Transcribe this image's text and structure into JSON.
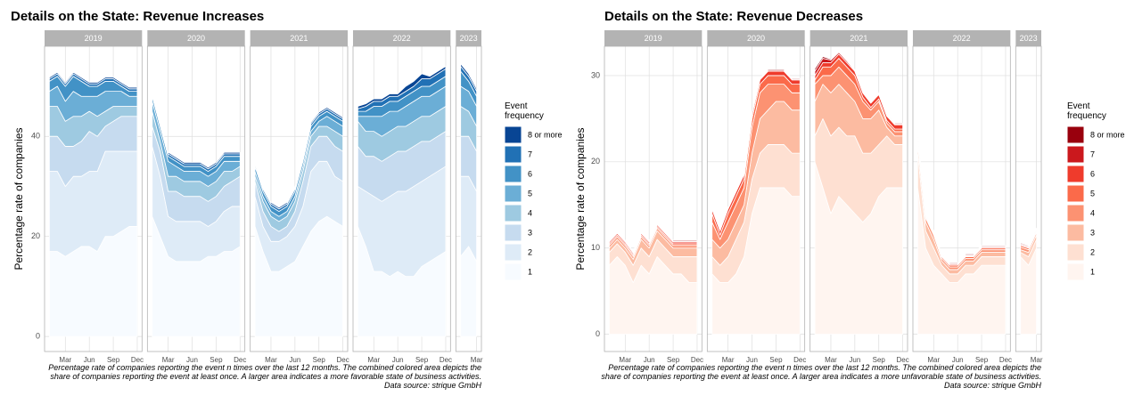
{
  "chart_data": [
    {
      "type": "area",
      "stacked": true,
      "grid": true,
      "title": "Details on the State: Revenue Increases",
      "y_label": "Percentage rate of companies",
      "legend_title": "Event frequency",
      "caption": "Percentage rate of companies reporting the event n times over the last 12 months. The combined colored area depicts the share of companies reporting the event at least once. A larger area indicates a more favorable state of business activities. Data source: strique GmbH",
      "ylim": [
        -3,
        58
      ],
      "yticks": [
        0,
        20,
        40
      ],
      "facets": [
        {
          "label": "2019",
          "categories": [
            null,
            null,
            "Mar",
            null,
            null,
            "Jun",
            null,
            null,
            "Sep",
            null,
            null,
            "Dec"
          ]
        },
        {
          "label": "2020",
          "categories": [
            null,
            null,
            "Mar",
            null,
            null,
            "Jun",
            null,
            null,
            "Sep",
            null,
            null,
            "Dec"
          ]
        },
        {
          "label": "2021",
          "categories": [
            null,
            null,
            "Mar",
            null,
            null,
            "Jun",
            null,
            null,
            "Sep",
            null,
            null,
            "Dec"
          ]
        },
        {
          "label": "2022",
          "categories": [
            null,
            null,
            "Mar",
            null,
            null,
            "Jun",
            null,
            null,
            "Sep",
            null,
            null,
            "Dec"
          ]
        },
        {
          "label": "2023",
          "categories": [
            null,
            null,
            "Mar"
          ]
        }
      ],
      "series": [
        {
          "name": "1",
          "color": "#f7fbff",
          "values": [
            17,
            17,
            16,
            17,
            18,
            18,
            17,
            20,
            20,
            21,
            22,
            22,
            24,
            20,
            16,
            15,
            15,
            15,
            15,
            16,
            16,
            17,
            17,
            18,
            22,
            17,
            13,
            13,
            14,
            15,
            18,
            21,
            23,
            24,
            23,
            22,
            22,
            18,
            13,
            13,
            12,
            13,
            12,
            12,
            14,
            15,
            16,
            17,
            16,
            18,
            15
          ]
        },
        {
          "name": "2",
          "color": "#deebf7",
          "values": [
            16,
            16,
            14,
            15,
            14,
            15,
            16,
            17,
            17,
            16,
            15,
            15,
            14,
            12,
            8,
            8,
            8,
            8,
            8,
            6,
            7,
            8,
            9,
            8,
            6,
            5,
            6,
            6,
            6,
            7,
            8,
            12,
            12,
            11,
            9,
            9,
            8,
            11,
            15,
            14,
            16,
            16,
            17,
            18,
            17,
            17,
            17,
            17,
            16,
            14,
            14
          ]
        },
        {
          "name": "3",
          "color": "#c6dbef",
          "values": [
            7,
            7,
            8,
            6,
            7,
            8,
            7,
            5,
            6,
            7,
            7,
            7,
            4,
            5,
            5,
            6,
            5,
            5,
            5,
            5,
            5,
            5,
            5,
            6,
            3,
            3,
            3,
            2,
            2,
            3,
            5,
            5,
            5,
            5,
            6,
            6,
            8,
            7,
            8,
            8,
            8,
            8,
            8,
            8,
            8,
            7,
            7,
            7,
            8,
            8,
            8
          ]
        },
        {
          "name": "4",
          "color": "#9ecae1",
          "values": [
            6,
            6,
            5,
            6,
            5,
            4,
            4,
            3,
            3,
            2,
            2,
            2,
            3,
            2,
            3,
            3,
            3,
            3,
            3,
            3,
            3,
            3,
            2,
            2,
            1,
            2,
            2,
            2,
            2,
            2,
            2,
            2,
            2,
            2,
            3,
            3,
            5,
            5,
            5,
            5,
            5,
            5,
            5,
            5,
            5,
            5,
            5,
            5,
            6,
            5,
            5
          ]
        },
        {
          "name": "5",
          "color": "#6baed6",
          "values": [
            3,
            4,
            4,
            5,
            4,
            3,
            4,
            4,
            3,
            3,
            2,
            2,
            2,
            2,
            3,
            2,
            2,
            2,
            2,
            2,
            2,
            2,
            2,
            1,
            1,
            1,
            1,
            1,
            1,
            1,
            1,
            1,
            1,
            2,
            2,
            2,
            1,
            3,
            3,
            4,
            4,
            3,
            4,
            4,
            4,
            4,
            4,
            4,
            4,
            4,
            4
          ]
        },
        {
          "name": "6",
          "color": "#4292c6",
          "values": [
            2,
            2,
            3,
            3,
            3,
            2,
            2,
            2,
            2,
            1,
            1,
            1,
            1,
            1,
            1,
            1,
            1,
            1,
            1,
            1,
            1,
            1,
            1,
            1,
            1,
            1,
            1,
            1,
            1,
            1,
            1,
            1,
            1,
            1,
            1,
            1,
            1,
            1,
            2,
            2,
            2,
            2,
            2,
            2,
            2,
            2,
            2,
            2,
            3,
            2,
            2
          ]
        },
        {
          "name": "7",
          "color": "#2171b5",
          "values": [
            0.5,
            0.5,
            0.5,
            0.5,
            0.5,
            0.5,
            0.5,
            0.5,
            0.5,
            0.5,
            0.5,
            0.5,
            0.5,
            0.5,
            0.5,
            0.5,
            0.5,
            0.5,
            0.5,
            0.5,
            0.5,
            0.5,
            0.5,
            0.5,
            0.5,
            0.5,
            0.5,
            0.5,
            0.5,
            0.5,
            0.5,
            0.5,
            0.5,
            0.5,
            0.5,
            0.5,
            0.5,
            1,
            1,
            1,
            1,
            1,
            1,
            1,
            1.5,
            1.5,
            1.5,
            1.5,
            1,
            1,
            1
          ]
        },
        {
          "name": "8 or more",
          "color": "#084594",
          "values": [
            0.3,
            0.3,
            0.3,
            0.3,
            0.3,
            0.3,
            0.3,
            0.3,
            0.3,
            0.3,
            0.3,
            0.3,
            0.3,
            0.3,
            0.3,
            0.3,
            0.3,
            0.3,
            0.3,
            0.3,
            0.3,
            0.3,
            0.3,
            0.3,
            0.3,
            0.3,
            0.3,
            0.3,
            0.3,
            0.3,
            0.3,
            0.3,
            0.3,
            0.3,
            0.3,
            0.3,
            0.5,
            0.5,
            0.5,
            0.5,
            0.5,
            0.5,
            1,
            1,
            1,
            0.5,
            0.5,
            0.5,
            0.5,
            0.5,
            0.5
          ]
        }
      ]
    },
    {
      "type": "area",
      "stacked": true,
      "grid": true,
      "title": "Details on the State: Revenue Decreases",
      "y_label": "Percentage rate of companies",
      "legend_title": "Event frequency",
      "caption": "Percentage rate of companies reporting the event n times over the last 12 months. The combined colored area depicts the share of companies reporting the event at least once. A larger area indicates a more unfavorable state of business activities. Data source: strique GmbH",
      "ylim": [
        -2,
        33.4
      ],
      "yticks": [
        0,
        10,
        20,
        30
      ],
      "facets": [
        {
          "label": "2019",
          "categories": [
            null,
            null,
            "Mar",
            null,
            null,
            "Jun",
            null,
            null,
            "Sep",
            null,
            null,
            "Dec"
          ]
        },
        {
          "label": "2020",
          "categories": [
            null,
            null,
            "Mar",
            null,
            null,
            "Jun",
            null,
            null,
            "Sep",
            null,
            null,
            "Dec"
          ]
        },
        {
          "label": "2021",
          "categories": [
            null,
            null,
            "Mar",
            null,
            null,
            "Jun",
            null,
            null,
            "Sep",
            null,
            null,
            "Dec"
          ]
        },
        {
          "label": "2022",
          "categories": [
            null,
            null,
            "Mar",
            null,
            null,
            "Jun",
            null,
            null,
            "Sep",
            null,
            null,
            "Dec"
          ]
        },
        {
          "label": "2023",
          "categories": [
            null,
            null,
            "Mar"
          ]
        }
      ],
      "series": [
        {
          "name": "1",
          "color": "#fff5f0",
          "values": [
            8,
            9,
            8,
            6,
            8,
            7,
            9,
            8,
            7,
            7,
            6,
            6,
            7,
            6,
            6,
            7,
            9,
            14,
            17,
            17,
            17,
            17,
            16,
            16,
            20,
            17,
            14,
            16,
            15,
            14,
            13,
            14,
            16,
            17,
            17,
            17,
            17,
            10,
            8,
            7,
            6,
            6,
            7,
            7,
            8,
            8,
            8,
            8,
            9,
            8,
            10
          ]
        },
        {
          "name": "2",
          "color": "#fee0d2",
          "values": [
            1.5,
            1.5,
            1.5,
            2,
            2,
            2,
            2,
            2,
            2,
            2,
            3,
            3,
            2,
            2,
            3,
            4,
            4,
            4,
            4,
            5,
            5,
            5,
            5,
            5,
            3,
            8,
            9,
            8,
            8,
            9,
            8,
            7,
            6,
            6,
            5,
            5,
            4,
            2,
            2,
            1,
            1,
            1,
            1,
            1,
            1,
            1,
            1,
            1,
            0.5,
            1,
            1
          ]
        },
        {
          "name": "3",
          "color": "#fcbba1",
          "values": [
            0.5,
            0.5,
            0.5,
            0.7,
            1,
            1,
            1,
            1,
            1,
            1,
            1,
            1,
            2,
            2,
            2,
            2,
            2,
            3,
            4,
            4,
            5,
            5,
            5,
            5,
            4,
            4,
            5,
            5,
            5,
            4,
            4,
            4,
            4,
            1,
            1,
            1,
            1,
            1,
            1,
            0.5,
            0.5,
            0.5,
            0.5,
            0.5,
            0.5,
            0.5,
            0.5,
            0.5,
            0.3,
            0.5,
            0.5
          ]
        },
        {
          "name": "4",
          "color": "#fc9272",
          "values": [
            0.3,
            0.3,
            0.3,
            0.3,
            0.3,
            0.3,
            0.3,
            0.3,
            0.3,
            0.3,
            0.3,
            0.3,
            2,
            1,
            2,
            2,
            2,
            3,
            3,
            3,
            2,
            2,
            2,
            2,
            2,
            1,
            2,
            2,
            2,
            2,
            2,
            1,
            1,
            0.5,
            0.5,
            0.5,
            0.5,
            0.5,
            0.5,
            0.3,
            0.3,
            0.3,
            0.3,
            0.3,
            0.3,
            0.3,
            0.3,
            0.3,
            0.3,
            0.3,
            0.3
          ]
        },
        {
          "name": "5",
          "color": "#fb6a4a",
          "values": [
            0.2,
            0.2,
            0.2,
            0.2,
            0.2,
            0.2,
            0.2,
            0.2,
            0.2,
            0.2,
            0.2,
            0.2,
            1,
            0.5,
            1,
            1,
            1,
            1,
            1,
            1,
            1,
            1,
            1,
            1,
            0.5,
            1,
            1,
            1,
            1,
            1,
            0.5,
            0.3,
            0.3,
            0.3,
            0.3,
            0.3,
            0.2,
            0.2,
            0.2,
            0.2,
            0.2,
            0.2,
            0.2,
            0.2,
            0.2,
            0.2,
            0.2,
            0.2,
            0.2,
            0.2,
            0.2
          ]
        },
        {
          "name": "6",
          "color": "#ef3b2c",
          "values": [
            0.2,
            0.2,
            0.2,
            0.2,
            0.2,
            0.2,
            0.2,
            0.2,
            0.2,
            0.2,
            0.2,
            0.2,
            0.5,
            0.5,
            0.5,
            0.5,
            0.5,
            0.5,
            0.5,
            0.5,
            0.5,
            0.5,
            0.5,
            0.5,
            0.5,
            0.5,
            0.5,
            0.5,
            0.5,
            0.5,
            0.5,
            0.5,
            0.5,
            0.5,
            0.5,
            0.5,
            0.1,
            0.1,
            0.1,
            0.1,
            0.1,
            0.1,
            0.1,
            0.1,
            0.1,
            0.1,
            0.1,
            0.1,
            0.1,
            0.1,
            0.1
          ]
        },
        {
          "name": "7",
          "color": "#cb181d",
          "values": [
            0.1,
            0.1,
            0.1,
            0.1,
            0.1,
            0.1,
            0.1,
            0.1,
            0.1,
            0.1,
            0.1,
            0.1,
            0.1,
            0.1,
            0.1,
            0.1,
            0.1,
            0.1,
            0.1,
            0.1,
            0.1,
            0.1,
            0.1,
            0.1,
            0.5,
            0.5,
            0.3,
            0.2,
            0.2,
            0.1,
            0.1,
            0.1,
            0.1,
            0.1,
            0.1,
            0.1,
            0.1,
            0.1,
            0.1,
            0.1,
            0.1,
            0.1,
            0.1,
            0.1,
            0.1,
            0.1,
            0.1,
            0.1,
            0.1,
            0.1,
            0.1
          ]
        },
        {
          "name": "8 or more",
          "color": "#99000d",
          "values": [
            0.1,
            0.1,
            0.1,
            0.1,
            0.1,
            0.1,
            0.1,
            0.1,
            0.1,
            0.1,
            0.1,
            0.1,
            0.1,
            0.1,
            0.1,
            0.1,
            0.1,
            0.1,
            0.1,
            0.1,
            0.1,
            0.1,
            0.1,
            0.1,
            0.3,
            0.2,
            0.1,
            0.1,
            0.1,
            0.1,
            0.1,
            0.1,
            0.1,
            0.1,
            0.1,
            0.1,
            0.1,
            0.1,
            0.1,
            0.1,
            0.1,
            0.1,
            0.1,
            0.1,
            0.1,
            0.1,
            0.1,
            0.1,
            0.1,
            0.1,
            0.1
          ]
        }
      ]
    }
  ]
}
